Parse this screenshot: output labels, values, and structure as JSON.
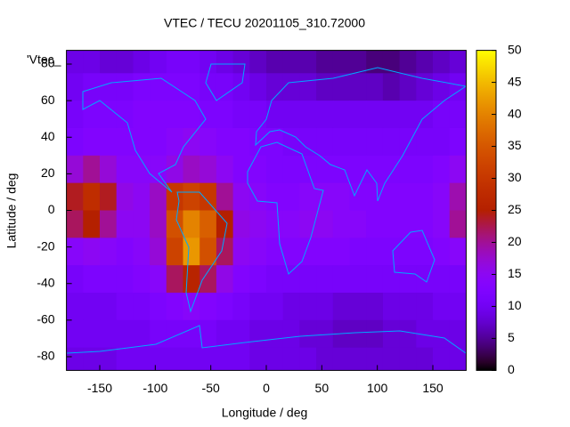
{
  "chart_data": {
    "type": "heatmap",
    "title": "VTEC / TECU 20201105_310.72000",
    "x_label": "Longitude / deg",
    "y_label": "Latitude / deg",
    "legend_label": "'Vtec_",
    "x": [
      -172.5,
      -157.5,
      -142.5,
      -127.5,
      -112.5,
      -97.5,
      -82.5,
      -67.5,
      -52.5,
      -37.5,
      -22.5,
      -7.5,
      7.5,
      22.5,
      37.5,
      52.5,
      67.5,
      82.5,
      97.5,
      112.5,
      127.5,
      142.5,
      157.5,
      172.5
    ],
    "y": [
      82.5,
      67.5,
      52.5,
      37.5,
      22.5,
      7.5,
      -7.5,
      -22.5,
      -37.5,
      -52.5,
      -67.5,
      -82.5
    ],
    "values": [
      [
        9,
        9,
        8,
        8,
        9,
        10,
        11,
        11,
        10,
        9,
        8,
        7,
        6,
        6,
        6,
        5,
        5,
        5,
        4,
        4,
        5,
        6,
        7,
        8
      ],
      [
        10,
        11,
        11,
        11,
        12,
        12,
        12,
        12,
        11,
        11,
        10,
        9,
        8,
        8,
        8,
        7,
        7,
        7,
        7,
        6,
        7,
        8,
        9,
        10
      ],
      [
        11,
        12,
        12,
        12,
        13,
        13,
        13,
        13,
        12,
        12,
        11,
        11,
        10,
        10,
        10,
        10,
        10,
        10,
        10,
        10,
        10,
        10,
        11,
        11
      ],
      [
        12,
        13,
        13,
        13,
        13,
        13,
        14,
        15,
        14,
        13,
        13,
        12,
        12,
        11,
        11,
        11,
        11,
        11,
        11,
        11,
        11,
        11,
        11,
        12
      ],
      [
        17,
        20,
        17,
        14,
        14,
        14,
        16,
        18,
        17,
        15,
        13,
        13,
        12,
        12,
        12,
        12,
        12,
        12,
        12,
        12,
        12,
        12,
        13,
        15
      ],
      [
        24,
        28,
        24,
        16,
        15,
        18,
        30,
        32,
        30,
        20,
        15,
        14,
        13,
        13,
        14,
        14,
        14,
        13,
        13,
        13,
        13,
        13,
        14,
        19
      ],
      [
        22,
        25,
        20,
        15,
        15,
        18,
        34,
        40,
        36,
        25,
        16,
        15,
        14,
        14,
        15,
        15,
        14,
        14,
        13,
        13,
        13,
        13,
        14,
        20
      ],
      [
        14,
        15,
        14,
        13,
        14,
        17,
        32,
        42,
        34,
        22,
        15,
        14,
        13,
        13,
        13,
        13,
        13,
        12,
        12,
        12,
        12,
        12,
        13,
        14
      ],
      [
        11,
        12,
        12,
        12,
        13,
        14,
        22,
        26,
        22,
        16,
        13,
        12,
        11,
        11,
        11,
        11,
        11,
        11,
        11,
        11,
        11,
        11,
        11,
        11
      ],
      [
        10,
        10,
        10,
        11,
        11,
        12,
        13,
        14,
        13,
        12,
        11,
        10,
        10,
        9,
        9,
        9,
        8,
        8,
        8,
        9,
        9,
        9,
        10,
        10
      ],
      [
        10,
        10,
        10,
        10,
        10,
        11,
        11,
        11,
        11,
        10,
        10,
        9,
        9,
        9,
        8,
        8,
        7,
        7,
        7,
        8,
        8,
        9,
        9,
        9
      ],
      [
        9,
        9,
        9,
        10,
        10,
        10,
        10,
        10,
        10,
        10,
        10,
        9,
        9,
        9,
        9,
        8,
        8,
        8,
        8,
        8,
        8,
        8,
        9,
        9
      ]
    ],
    "cell_size": 15,
    "xlim": [
      -180,
      180
    ],
    "ylim": [
      -87.5,
      87.5
    ],
    "xticks": [
      -150,
      -100,
      -50,
      0,
      50,
      100,
      150
    ],
    "yticks": [
      -80,
      -60,
      -40,
      -20,
      0,
      20,
      40,
      60,
      80
    ],
    "clim": [
      0,
      50
    ],
    "cticks": [
      0,
      5,
      10,
      15,
      20,
      25,
      30,
      35,
      40,
      45,
      50
    ]
  }
}
